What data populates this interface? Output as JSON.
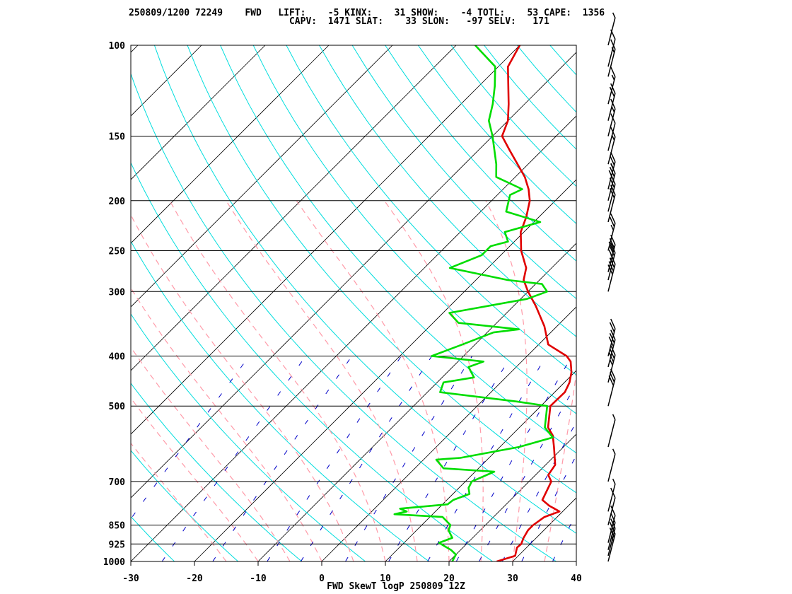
{
  "header": {
    "line1": "250809/1200 72249    FWD   LIFT:    -5 KINX:    31 SHOW:    -4 TOTL:    53 CAPE:  1356",
    "line2": "                             CAPV:  1471 SLAT:    33 SLON:   -97 SELV:   171"
  },
  "footer": "FWD SkewT logP 250809 12Z",
  "colors": {
    "temperature": "#e00000",
    "dewpoint": "#00dd00",
    "dry_adiabat": "#00dddd",
    "moist_adiabat": "#ff9aa8",
    "mixing_ratio": "#0000c8",
    "isobar": "#000000",
    "isotherm": "#000000"
  },
  "chart_data": {
    "type": "skewt",
    "title": "FWD SkewT logP 250809 12Z",
    "pressure_ticks": [
      100,
      150,
      200,
      250,
      300,
      400,
      500,
      700,
      850,
      925,
      1000
    ],
    "temperature_ticks": [
      -30,
      -20,
      -10,
      0,
      10,
      20,
      30,
      40
    ],
    "xlim": [
      -30,
      40
    ],
    "ylim": [
      1000,
      100
    ],
    "series": [
      {
        "role": "temperature",
        "points": [
          [
            1000,
            27.5
          ],
          [
            975,
            29.5
          ],
          [
            940,
            28.5
          ],
          [
            925,
            28.6
          ],
          [
            900,
            28.0
          ],
          [
            870,
            27.5
          ],
          [
            850,
            27.5
          ],
          [
            820,
            28.0
          ],
          [
            800,
            29.5
          ],
          [
            780,
            27.0
          ],
          [
            760,
            25.0
          ],
          [
            700,
            23.5
          ],
          [
            680,
            22.0
          ],
          [
            650,
            21.5
          ],
          [
            600,
            18.5
          ],
          [
            570,
            16.5
          ],
          [
            550,
            14.5
          ],
          [
            500,
            11.5
          ],
          [
            470,
            11.6
          ],
          [
            450,
            10.8
          ],
          [
            430,
            9.5
          ],
          [
            410,
            7.7
          ],
          [
            400,
            6.2
          ],
          [
            380,
            1.5
          ],
          [
            350,
            -2.0
          ],
          [
            320,
            -6.5
          ],
          [
            300,
            -10.0
          ],
          [
            285,
            -12.5
          ],
          [
            270,
            -14.0
          ],
          [
            250,
            -17.5
          ],
          [
            230,
            -20.5
          ],
          [
            215,
            -22.0
          ],
          [
            200,
            -24.0
          ],
          [
            190,
            -26.0
          ],
          [
            180,
            -28.5
          ],
          [
            160,
            -35.0
          ],
          [
            150,
            -38.5
          ],
          [
            140,
            -40.0
          ],
          [
            130,
            -42.5
          ],
          [
            110,
            -48.5
          ],
          [
            100,
            -50.0
          ]
        ]
      },
      {
        "role": "dewpoint",
        "points": [
          [
            1000,
            20.5
          ],
          [
            970,
            20.0
          ],
          [
            950,
            18.5
          ],
          [
            935,
            17.0
          ],
          [
            920,
            15.5
          ],
          [
            900,
            16.8
          ],
          [
            870,
            15.0
          ],
          [
            850,
            14.5
          ],
          [
            820,
            12.0
          ],
          [
            810,
            4.0
          ],
          [
            800,
            5.5
          ],
          [
            790,
            4.0
          ],
          [
            775,
            10.8
          ],
          [
            760,
            11.0
          ],
          [
            740,
            12.6
          ],
          [
            720,
            11.5
          ],
          [
            700,
            11.0
          ],
          [
            670,
            13.0
          ],
          [
            660,
            4.5
          ],
          [
            635,
            2.0
          ],
          [
            630,
            5.5
          ],
          [
            600,
            13.0
          ],
          [
            575,
            16.8
          ],
          [
            550,
            14.0
          ],
          [
            500,
            11.0
          ],
          [
            490,
            5.5
          ],
          [
            470,
            -8.0
          ],
          [
            450,
            -9.0
          ],
          [
            440,
            -5.0
          ],
          [
            420,
            -7.5
          ],
          [
            410,
            -6.0
          ],
          [
            400,
            -15.0
          ],
          [
            380,
            -12.0
          ],
          [
            360,
            -9.0
          ],
          [
            355,
            -5.5
          ],
          [
            345,
            -16.0
          ],
          [
            330,
            -19.0
          ],
          [
            310,
            -9.0
          ],
          [
            300,
            -7.0
          ],
          [
            290,
            -9.0
          ],
          [
            285,
            -15.0
          ],
          [
            270,
            -26.0
          ],
          [
            255,
            -23.0
          ],
          [
            245,
            -23.0
          ],
          [
            240,
            -21.0
          ],
          [
            230,
            -23.0
          ],
          [
            220,
            -19.0
          ],
          [
            210,
            -26.0
          ],
          [
            195,
            -28.0
          ],
          [
            190,
            -27.0
          ],
          [
            180,
            -33.0
          ],
          [
            170,
            -35.0
          ],
          [
            150,
            -40.0
          ],
          [
            140,
            -43.0
          ],
          [
            130,
            -45.0
          ],
          [
            120,
            -47.5
          ],
          [
            110,
            -50.5
          ],
          [
            100,
            -57.0
          ]
        ]
      }
    ],
    "wind_barbs": [
      {
        "p": 1000,
        "speed_kt": 25
      },
      {
        "p": 975,
        "speed_kt": 20
      },
      {
        "p": 950,
        "speed_kt": 15
      },
      {
        "p": 920,
        "speed_kt": 10
      },
      {
        "p": 850,
        "speed_kt": 10
      },
      {
        "p": 800,
        "speed_kt": 5
      },
      {
        "p": 700,
        "speed_kt": 5
      },
      {
        "p": 600,
        "speed_kt": 5
      },
      {
        "p": 500,
        "speed_kt": 30
      },
      {
        "p": 450,
        "speed_kt": 35
      },
      {
        "p": 420,
        "speed_kt": 30
      },
      {
        "p": 400,
        "speed_kt": 25
      },
      {
        "p": 300,
        "speed_kt": 40
      },
      {
        "p": 285,
        "speed_kt": 35
      },
      {
        "p": 275,
        "speed_kt": 30
      },
      {
        "p": 250,
        "speed_kt": 25
      },
      {
        "p": 220,
        "speed_kt": 20
      },
      {
        "p": 210,
        "speed_kt": 25
      },
      {
        "p": 200,
        "speed_kt": 30
      },
      {
        "p": 190,
        "speed_kt": 25
      },
      {
        "p": 170,
        "speed_kt": 15
      },
      {
        "p": 160,
        "speed_kt": 10
      },
      {
        "p": 150,
        "speed_kt": 15
      },
      {
        "p": 140,
        "speed_kt": 20
      },
      {
        "p": 130,
        "speed_kt": 15
      },
      {
        "p": 115,
        "speed_kt": 15
      },
      {
        "p": 110,
        "speed_kt": 10
      },
      {
        "p": 100,
        "speed_kt": 5
      }
    ]
  }
}
